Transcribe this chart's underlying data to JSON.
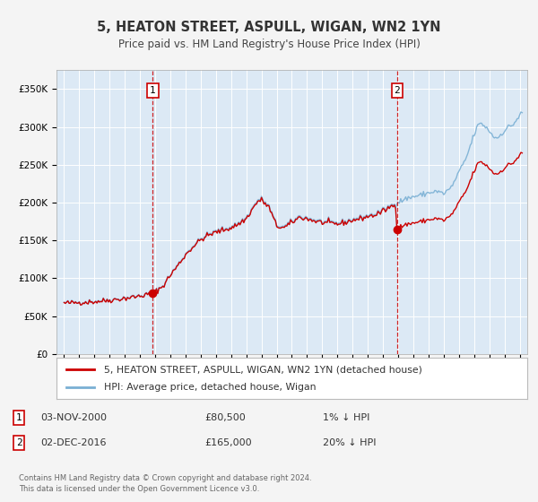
{
  "title": "5, HEATON STREET, ASPULL, WIGAN, WN2 1YN",
  "subtitle": "Price paid vs. HM Land Registry's House Price Index (HPI)",
  "fig_bg": "#f4f4f4",
  "plot_bg": "#dce9f5",
  "sale1_date_num": 2000.84,
  "sale1_price": 80500,
  "sale1_label": "1",
  "sale2_date_num": 2016.92,
  "sale2_price": 165000,
  "sale2_label": "2",
  "legend_label_red": "5, HEATON STREET, ASPULL, WIGAN, WN2 1YN (detached house)",
  "legend_label_blue": "HPI: Average price, detached house, Wigan",
  "table_row1": [
    "1",
    "03-NOV-2000",
    "£80,500",
    "1% ↓ HPI"
  ],
  "table_row2": [
    "2",
    "02-DEC-2016",
    "£165,000",
    "20% ↓ HPI"
  ],
  "footer": "Contains HM Land Registry data © Crown copyright and database right 2024.\nThis data is licensed under the Open Government Licence v3.0.",
  "red_color": "#cc0000",
  "blue_color": "#7ab0d4",
  "vline_color": "#cc0000",
  "xlim": [
    1994.5,
    2025.5
  ],
  "ylim": [
    0,
    375000
  ],
  "yticks": [
    0,
    50000,
    100000,
    150000,
    200000,
    250000,
    300000,
    350000
  ],
  "ytick_labels": [
    "£0",
    "£50K",
    "£100K",
    "£150K",
    "£200K",
    "£250K",
    "£300K",
    "£350K"
  ],
  "xticks": [
    1995,
    1996,
    1997,
    1998,
    1999,
    2000,
    2001,
    2002,
    2003,
    2004,
    2005,
    2006,
    2007,
    2008,
    2009,
    2010,
    2011,
    2012,
    2013,
    2014,
    2015,
    2016,
    2017,
    2018,
    2019,
    2020,
    2021,
    2022,
    2023,
    2024,
    2025
  ]
}
